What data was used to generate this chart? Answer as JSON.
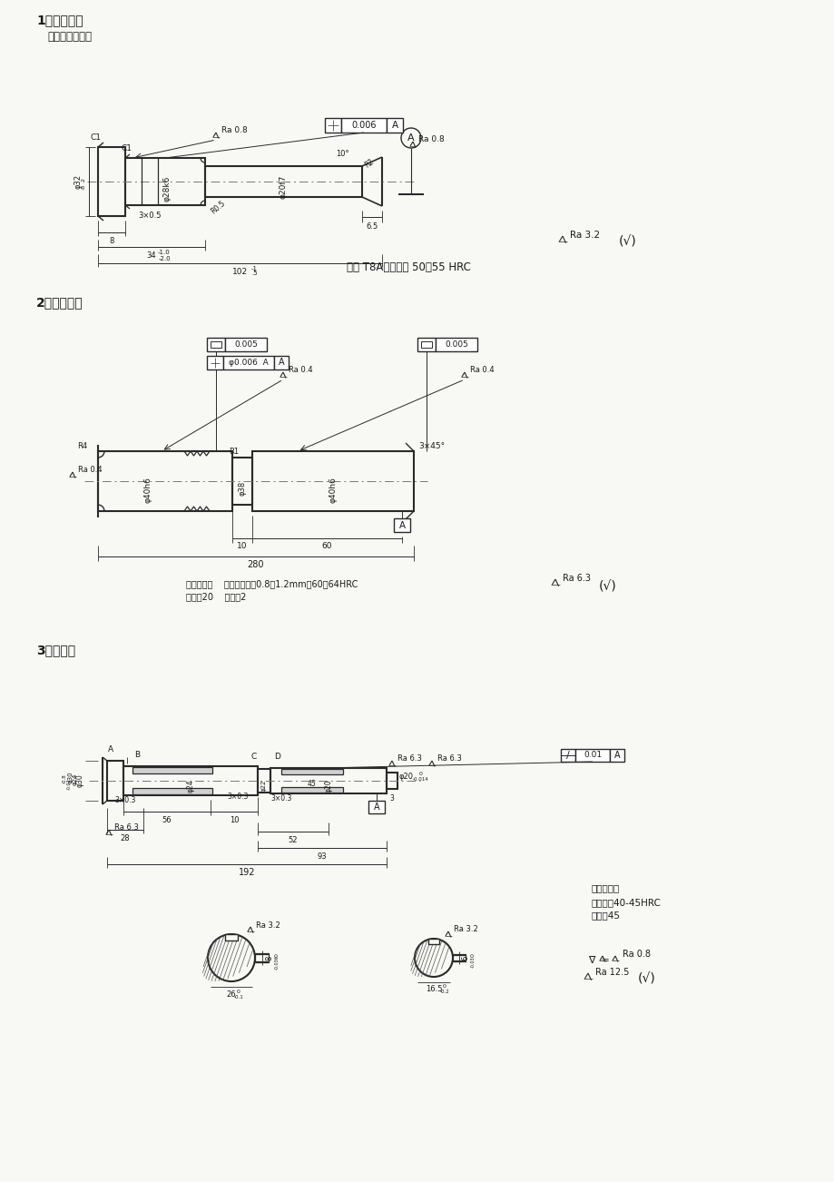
{
  "page_bg": "#f8f8f5",
  "line_color": "#2a2a2a",
  "text_color": "#1a1a1a",
  "title1": "1、带头导柱",
  "subtitle1": "（小批量加工）",
  "title2": "2、直杆导柱",
  "title3": "3、传动轴",
  "mat1": "材料 T8A，热处理 50～55 HRC",
  "mat2_line1": "名称：导柱    热处理：渗硳0.8～1.2mm，60～64HRC",
  "mat2_line2": "材料：20    数量：2",
  "tech_req": "技术要求：",
  "tech_heat": "热处理：40-45HRC",
  "tech_mat": "材料：45"
}
